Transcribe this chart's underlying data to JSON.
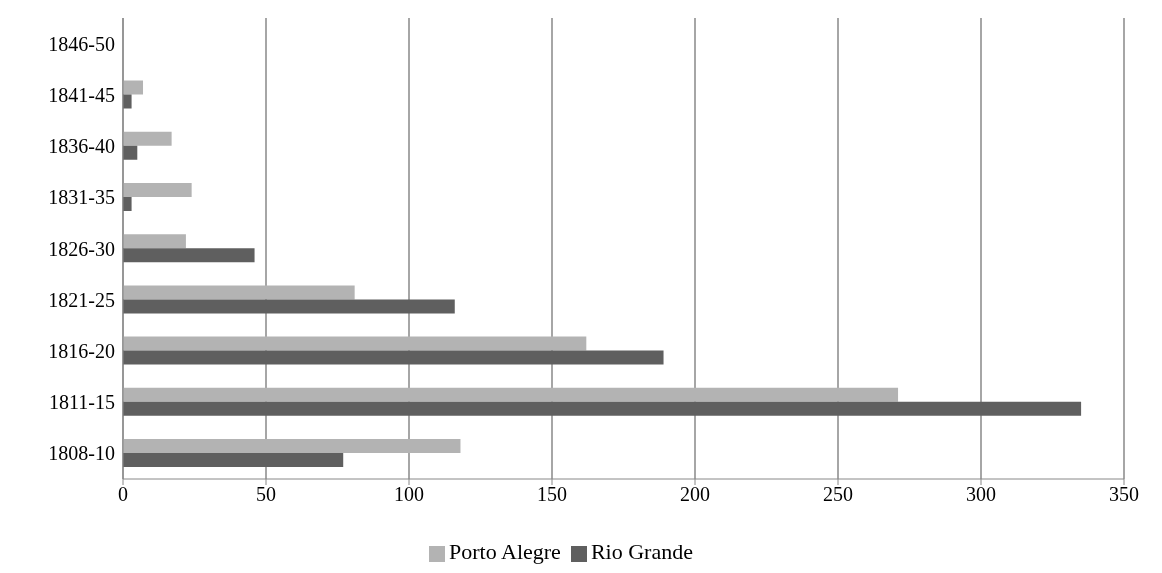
{
  "chart_data": {
    "type": "bar",
    "orientation": "horizontal",
    "categories": [
      "1846-50",
      "1841-45",
      "1836-40",
      "1831-35",
      "1826-30",
      "1821-25",
      "1816-20",
      "1811-15",
      "1808-10"
    ],
    "series": [
      {
        "name": "Porto Alegre",
        "color": "#b3b3b3",
        "values": [
          null,
          7,
          17,
          24,
          22,
          81,
          162,
          271,
          118
        ]
      },
      {
        "name": "Rio Grande",
        "color": "#5f5f5f",
        "values": [
          null,
          3,
          5,
          3,
          46,
          116,
          189,
          335,
          77
        ]
      }
    ],
    "xlim": [
      0,
      350
    ],
    "xticks": [
      0,
      50,
      100,
      150,
      200,
      250,
      300,
      350
    ],
    "grid": "x",
    "legend": "bottom"
  }
}
